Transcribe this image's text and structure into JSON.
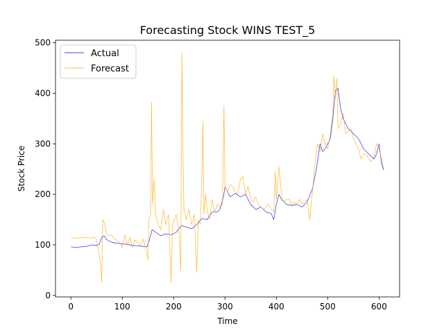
{
  "chart_data": {
    "type": "line",
    "title": "Forecasting Stock WINS TEST_5",
    "xlabel": "Time",
    "ylabel": "Stock Price",
    "xlim": [
      -30,
      640
    ],
    "ylim": [
      -3,
      505
    ],
    "xticks": [
      0,
      100,
      200,
      300,
      400,
      500,
      600
    ],
    "yticks": [
      0,
      100,
      200,
      300,
      400,
      500
    ],
    "grid": false,
    "legend_position": "top-left",
    "series": [
      {
        "name": "Actual",
        "color": "#0000ff",
        "points": [
          [
            0,
            96
          ],
          [
            10,
            95
          ],
          [
            20,
            96
          ],
          [
            30,
            97
          ],
          [
            40,
            100
          ],
          [
            50,
            99
          ],
          [
            55,
            101
          ],
          [
            60,
            115
          ],
          [
            65,
            118
          ],
          [
            70,
            110
          ],
          [
            80,
            105
          ],
          [
            90,
            103
          ],
          [
            100,
            102
          ],
          [
            110,
            101
          ],
          [
            120,
            99
          ],
          [
            130,
            98
          ],
          [
            140,
            97
          ],
          [
            148,
            96
          ],
          [
            153,
            110
          ],
          [
            158,
            130
          ],
          [
            165,
            125
          ],
          [
            175,
            118
          ],
          [
            185,
            122
          ],
          [
            195,
            120
          ],
          [
            205,
            125
          ],
          [
            215,
            138
          ],
          [
            225,
            135
          ],
          [
            235,
            132
          ],
          [
            245,
            140
          ],
          [
            255,
            152
          ],
          [
            265,
            150
          ],
          [
            275,
            165
          ],
          [
            285,
            165
          ],
          [
            290,
            170
          ],
          [
            297,
            195
          ],
          [
            300,
            215
          ],
          [
            305,
            205
          ],
          [
            310,
            195
          ],
          [
            320,
            202
          ],
          [
            330,
            195
          ],
          [
            340,
            200
          ],
          [
            350,
            180
          ],
          [
            360,
            170
          ],
          [
            370,
            175
          ],
          [
            380,
            165
          ],
          [
            390,
            162
          ],
          [
            395,
            150
          ],
          [
            400,
            180
          ],
          [
            405,
            200
          ],
          [
            410,
            190
          ],
          [
            420,
            180
          ],
          [
            430,
            178
          ],
          [
            440,
            180
          ],
          [
            450,
            175
          ],
          [
            460,
            185
          ],
          [
            470,
            210
          ],
          [
            478,
            250
          ],
          [
            485,
            300
          ],
          [
            490,
            285
          ],
          [
            495,
            290
          ],
          [
            500,
            300
          ],
          [
            505,
            310
          ],
          [
            510,
            350
          ],
          [
            515,
            405
          ],
          [
            520,
            410
          ],
          [
            525,
            370
          ],
          [
            530,
            350
          ],
          [
            540,
            330
          ],
          [
            550,
            320
          ],
          [
            560,
            310
          ],
          [
            570,
            290
          ],
          [
            580,
            280
          ],
          [
            585,
            275
          ],
          [
            590,
            270
          ],
          [
            595,
            280
          ],
          [
            600,
            300
          ],
          [
            605,
            260
          ],
          [
            609,
            248
          ]
        ]
      },
      {
        "name": "Forecast",
        "color": "#ffa500",
        "points": [
          [
            0,
            115
          ],
          [
            10,
            113
          ],
          [
            20,
            114
          ],
          [
            30,
            115
          ],
          [
            40,
            113
          ],
          [
            45,
            116
          ],
          [
            50,
            110
          ],
          [
            55,
            80
          ],
          [
            58,
            60
          ],
          [
            60,
            25
          ],
          [
            62,
            150
          ],
          [
            65,
            145
          ],
          [
            70,
            120
          ],
          [
            80,
            118
          ],
          [
            90,
            108
          ],
          [
            95,
            105
          ],
          [
            100,
            95
          ],
          [
            105,
            120
          ],
          [
            110,
            100
          ],
          [
            115,
            115
          ],
          [
            120,
            95
          ],
          [
            125,
            110
          ],
          [
            130,
            105
          ],
          [
            135,
            98
          ],
          [
            140,
            112
          ],
          [
            145,
            95
          ],
          [
            150,
            70
          ],
          [
            152,
            150
          ],
          [
            155,
            160
          ],
          [
            157,
            383
          ],
          [
            159,
            180
          ],
          [
            162,
            230
          ],
          [
            165,
            160
          ],
          [
            170,
            140
          ],
          [
            175,
            130
          ],
          [
            180,
            170
          ],
          [
            185,
            140
          ],
          [
            190,
            160
          ],
          [
            195,
            25
          ],
          [
            198,
            140
          ],
          [
            205,
            160
          ],
          [
            210,
            130
          ],
          [
            214,
            50
          ],
          [
            216,
            480
          ],
          [
            218,
            300
          ],
          [
            220,
            170
          ],
          [
            225,
            150
          ],
          [
            230,
            170
          ],
          [
            235,
            140
          ],
          [
            240,
            160
          ],
          [
            245,
            45
          ],
          [
            248,
            150
          ],
          [
            252,
            140
          ],
          [
            255,
            230
          ],
          [
            257,
            345
          ],
          [
            259,
            160
          ],
          [
            262,
            200
          ],
          [
            265,
            170
          ],
          [
            270,
            150
          ],
          [
            275,
            190
          ],
          [
            280,
            165
          ],
          [
            285,
            180
          ],
          [
            290,
            175
          ],
          [
            295,
            180
          ],
          [
            298,
            375
          ],
          [
            300,
            215
          ],
          [
            305,
            205
          ],
          [
            310,
            220
          ],
          [
            315,
            215
          ],
          [
            320,
            205
          ],
          [
            325,
            200
          ],
          [
            330,
            230
          ],
          [
            335,
            235
          ],
          [
            340,
            200
          ],
          [
            345,
            215
          ],
          [
            350,
            190
          ],
          [
            355,
            185
          ],
          [
            360,
            195
          ],
          [
            365,
            180
          ],
          [
            370,
            175
          ],
          [
            375,
            170
          ],
          [
            380,
            175
          ],
          [
            385,
            180
          ],
          [
            390,
            170
          ],
          [
            395,
            165
          ],
          [
            398,
            245
          ],
          [
            400,
            190
          ],
          [
            405,
            255
          ],
          [
            410,
            200
          ],
          [
            415,
            185
          ],
          [
            420,
            190
          ],
          [
            425,
            190
          ],
          [
            430,
            180
          ],
          [
            435,
            185
          ],
          [
            440,
            180
          ],
          [
            445,
            190
          ],
          [
            450,
            180
          ],
          [
            455,
            185
          ],
          [
            460,
            190
          ],
          [
            465,
            150
          ],
          [
            470,
            200
          ],
          [
            475,
            260
          ],
          [
            480,
            300
          ],
          [
            485,
            285
          ],
          [
            490,
            320
          ],
          [
            495,
            300
          ],
          [
            500,
            290
          ],
          [
            505,
            320
          ],
          [
            510,
            360
          ],
          [
            512,
            435
          ],
          [
            515,
            390
          ],
          [
            518,
            430
          ],
          [
            520,
            330
          ],
          [
            525,
            340
          ],
          [
            530,
            360
          ],
          [
            535,
            320
          ],
          [
            540,
            325
          ],
          [
            545,
            330
          ],
          [
            550,
            310
          ],
          [
            555,
            300
          ],
          [
            560,
            290
          ],
          [
            565,
            270
          ],
          [
            570,
            280
          ],
          [
            575,
            280
          ],
          [
            580,
            270
          ],
          [
            585,
            265
          ],
          [
            590,
            275
          ],
          [
            595,
            300
          ],
          [
            600,
            290
          ],
          [
            605,
            270
          ],
          [
            609,
            250
          ]
        ]
      }
    ]
  }
}
